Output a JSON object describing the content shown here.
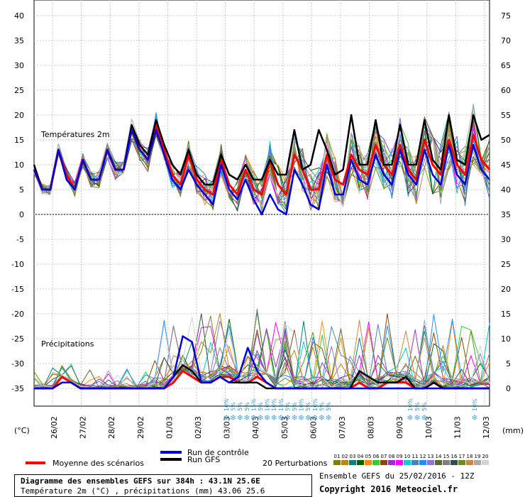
{
  "chart_data": [
    {
      "type": "line",
      "panel": "temperature",
      "title": "Températures 2m",
      "ylabel_left": "(°C)",
      "ylabel_right": "(mm)",
      "left_ticks": [
        "40",
        "35",
        "30",
        "25",
        "20",
        "15",
        "10",
        "5",
        "0"
      ],
      "right_ticks": [
        "75",
        "70",
        "65",
        "60",
        "55",
        "50",
        "45",
        "40",
        "35"
      ],
      "ylim": [
        0,
        40
      ],
      "x_labels": [
        "26/02",
        "27/02",
        "28/02",
        "29/02",
        "01/03",
        "02/03",
        "03/03",
        "04/03",
        "05/03",
        "06/03",
        "07/03",
        "08/03",
        "09/03",
        "10/03",
        "11/03",
        "12/03"
      ],
      "series": [
        {
          "name": "Moyenne des scénarios",
          "color": "#ff0000",
          "values": [
            9,
            5,
            5,
            13,
            8,
            5,
            11,
            7,
            7,
            13,
            9,
            9,
            17,
            13,
            11,
            18,
            13,
            8,
            6,
            12,
            7,
            5,
            4,
            11,
            6,
            4,
            9,
            5,
            4,
            11,
            6,
            4,
            12,
            9,
            5,
            5,
            12,
            7,
            6,
            12,
            9,
            8,
            14,
            10,
            8,
            14,
            9,
            7,
            15,
            10,
            8,
            15,
            10,
            8,
            16,
            11,
            9
          ]
        },
        {
          "name": "Run GFS",
          "color": "#000000",
          "values": [
            10,
            5,
            5,
            13,
            7,
            5,
            11,
            7,
            7,
            13,
            9,
            9,
            18,
            14,
            12,
            19,
            14,
            10,
            8,
            13,
            8,
            6,
            6,
            12,
            8,
            7,
            10,
            7,
            7,
            11,
            8,
            8,
            17,
            9,
            10,
            17,
            13,
            8,
            9,
            20,
            10,
            10,
            19,
            10,
            10,
            18,
            10,
            10,
            19,
            11,
            9,
            20,
            11,
            10,
            20,
            15,
            16
          ]
        },
        {
          "name": "Run de contrôle",
          "color": "#0000dd",
          "values": [
            9,
            5,
            5,
            13,
            7,
            5,
            11,
            7,
            7,
            13,
            9,
            9,
            17,
            13,
            11,
            17,
            12,
            7,
            5,
            9,
            6,
            4,
            2,
            10,
            5,
            3,
            7,
            3,
            0,
            4,
            1,
            0,
            9,
            6,
            2,
            1,
            10,
            4,
            4,
            11,
            7,
            6,
            12,
            8,
            6,
            13,
            8,
            6,
            13,
            8,
            6,
            14,
            8,
            6,
            14,
            9,
            7
          ]
        }
      ]
    },
    {
      "type": "line",
      "panel": "precipitation",
      "title": "Précipitations",
      "left_ticks": [
        "-5",
        "-10",
        "-15",
        "-20",
        "-25",
        "-30",
        "-35"
      ],
      "right_ticks": [
        "30",
        "25",
        "20",
        "15",
        "10",
        "5",
        "0"
      ],
      "ylim": [
        0,
        30
      ],
      "series": [
        {
          "name": "Moyenne des scénarios",
          "color": "#ff0000",
          "values": [
            0,
            0,
            0,
            2,
            1,
            0,
            0,
            0,
            0,
            0,
            0,
            0,
            0,
            0,
            0,
            1,
            3,
            2,
            1,
            1,
            2,
            2,
            1,
            1,
            2,
            1,
            0,
            0,
            0,
            0,
            0,
            0,
            0,
            0,
            0,
            1,
            0,
            0,
            1,
            1,
            1,
            0,
            0,
            1,
            0,
            0,
            0,
            0,
            0,
            0
          ]
        },
        {
          "name": "Run GFS",
          "color": "#000000",
          "values": [
            0,
            0,
            0,
            1,
            1,
            0,
            0,
            0,
            0,
            0,
            0,
            0,
            0,
            0,
            0,
            2,
            4,
            3,
            1,
            1,
            2,
            1,
            1,
            1,
            1,
            0,
            0,
            0,
            0,
            0,
            0,
            0,
            0,
            0,
            0,
            3,
            2,
            1,
            1,
            1,
            2,
            0,
            0,
            1,
            0,
            0,
            0,
            0,
            0,
            0
          ]
        },
        {
          "name": "Run de contrôle",
          "color": "#0000dd",
          "values": [
            0,
            0,
            0,
            1,
            1,
            0,
            0,
            0,
            0,
            0,
            0,
            0,
            0,
            0,
            0,
            2,
            9,
            8,
            1,
            1,
            2,
            1,
            2,
            7,
            3,
            1,
            0,
            0,
            0,
            0,
            0,
            0,
            0,
            0,
            0,
            0,
            0,
            0,
            0,
            0,
            0,
            0,
            0,
            0,
            0,
            0,
            0,
            0,
            0,
            0
          ]
        }
      ],
      "snow_markers": {
        "group1": [
          "10%",
          "5%",
          "5%",
          "5%",
          "15%",
          "5%",
          "10%",
          "10%",
          "15%",
          "5%",
          "5%",
          "10%",
          "5%",
          "10%",
          "5%",
          "5%"
        ],
        "group2": [
          "10%",
          "5%",
          "5%"
        ],
        "group3": [
          "10%"
        ]
      }
    }
  ],
  "legend": {
    "mean": "Moyenne des scénarios",
    "control": "Run de contrôle",
    "gfs": "Run GFS",
    "perturbations_label": "20 Perturbations",
    "perturbation_numbers": [
      "01",
      "02",
      "03",
      "04",
      "05",
      "06",
      "07",
      "08",
      "09",
      "10",
      "11",
      "12",
      "13",
      "14",
      "15",
      "16",
      "17",
      "18",
      "19",
      "20"
    ],
    "perturbation_colors": [
      "#808000",
      "#b8860b",
      "#008080",
      "#006400",
      "#ff8c00",
      "#32cd32",
      "#8b4513",
      "#9932cc",
      "#ff00ff",
      "#00ced1",
      "#4682b4",
      "#1e90ff",
      "#9370db",
      "#556b2f",
      "#808080",
      "#2f4f4f",
      "#6b8e23",
      "#cd853f",
      "#a9a9a9",
      "#d3d3d3"
    ]
  },
  "footer": {
    "title": "Diagramme des ensembles GEFS sur 384h : 43.1N 25.6E",
    "subtitle": "Température 2m (°C) , précipitations (mm) 43.06 25.6",
    "ensemble_label": "Ensemble GEFS du 25/02/2016 - 12Z",
    "copyright": "Copyright 2016 Meteociel.fr"
  },
  "axis_units": {
    "left": "(°C)",
    "right": "(mm)"
  }
}
